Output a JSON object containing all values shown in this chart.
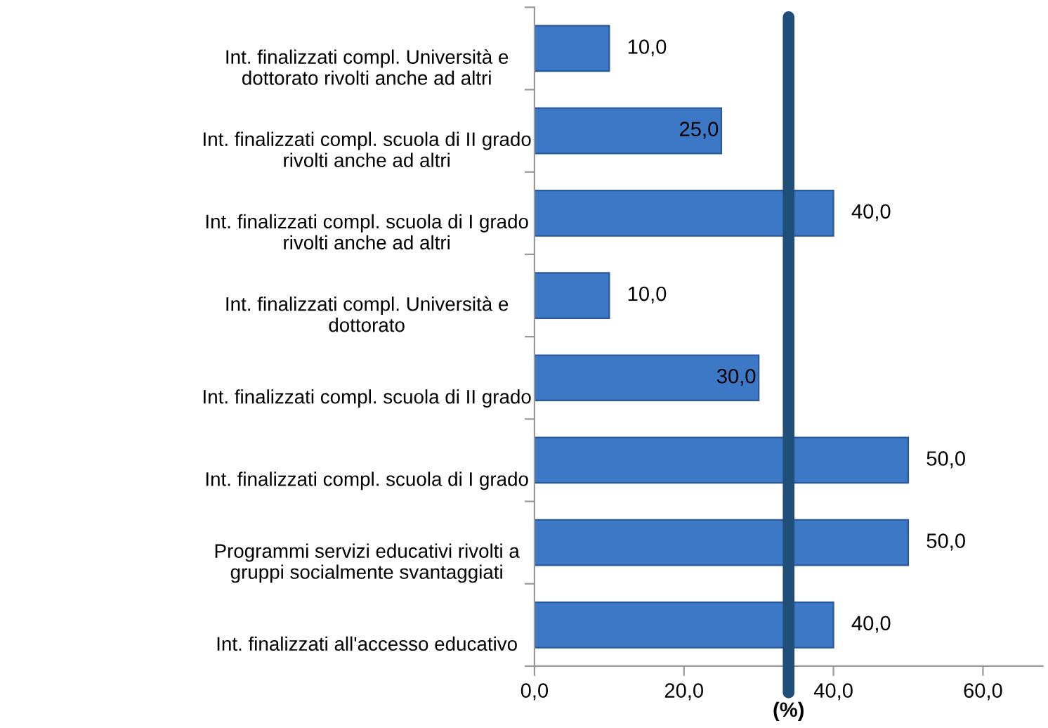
{
  "chart_data": {
    "type": "bar",
    "orientation": "horizontal",
    "xlabel": "(%)",
    "categories": [
      "Int. finalizzati compl. Università e\ndottorato rivolti anche ad altri",
      "Int. finalizzati compl. scuola di II grado\nrivolti anche ad altri",
      "Int. finalizzati compl. scuola di I grado\nrivolti anche ad altri",
      "Int. finalizzati compl. Università e\ndottorato",
      "Int. finalizzati compl. scuola di II grado",
      "Int. finalizzati compl. scuola di I grado",
      "Programmi servizi educativi rivolti a\ngruppi socialmente svantaggiati",
      "Int. finalizzati all'accesso educativo"
    ],
    "values": [
      10,
      25,
      40,
      10,
      30,
      50,
      50,
      40
    ],
    "value_labels": [
      "10,0",
      "25,0",
      "40,0",
      "10,0",
      "30,0",
      "50,0",
      "50,0",
      "40,0"
    ],
    "color": "#3d78c6",
    "xlim": [
      0,
      68
    ],
    "xticks": [
      {
        "value": 0,
        "label": "0,0"
      },
      {
        "value": 20,
        "label": "20,0"
      },
      {
        "value": 40,
        "label": "40,0"
      },
      {
        "value": 60,
        "label": "60,0"
      }
    ],
    "ref_lines": [
      {
        "axis": "x",
        "value": 34,
        "color": "#1f4e79"
      }
    ],
    "grid": false,
    "legend": false
  }
}
